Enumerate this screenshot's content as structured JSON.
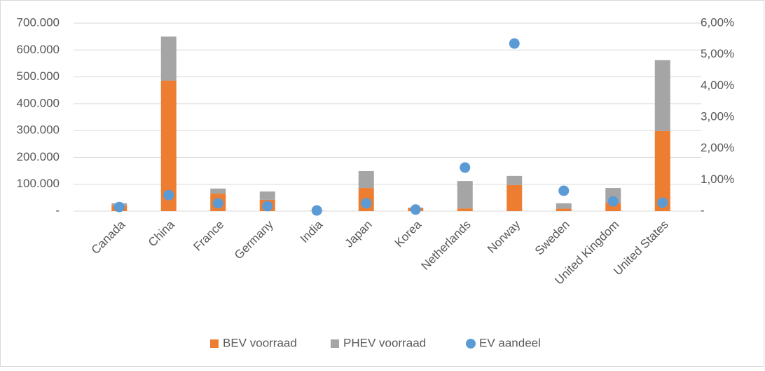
{
  "chart_data": {
    "type": "bar",
    "categories": [
      "Canada",
      "China",
      "France",
      "Germany",
      "India",
      "Japan",
      "Korea",
      "Netherlands",
      "Norway",
      "Sweden",
      "United Kingdom",
      "United States"
    ],
    "series": [
      {
        "name": "BEV voorraad",
        "color": "#ed7d31",
        "stack": true,
        "values": [
          20000,
          486000,
          65000,
          42000,
          1000,
          86000,
          11000,
          10000,
          97000,
          9000,
          31000,
          298000
        ]
      },
      {
        "name": "PHEV voorraad",
        "color": "#a5a5a5",
        "stack": true,
        "values": [
          9000,
          164000,
          19000,
          31000,
          0,
          63000,
          2000,
          102000,
          34000,
          20000,
          55000,
          264000
        ]
      },
      {
        "name": "EV aandeel",
        "color": "#5b9bd5",
        "type": "scatter",
        "axis": "y2",
        "values": [
          0.13,
          0.51,
          0.25,
          0.16,
          0.02,
          0.25,
          0.05,
          1.39,
          5.35,
          0.65,
          0.31,
          0.27
        ]
      }
    ],
    "ylim": [
      0,
      700000
    ],
    "yticks": [
      {
        "value": 0,
        "label": "-"
      },
      {
        "value": 100000,
        "label": "100.000"
      },
      {
        "value": 200000,
        "label": "200.000"
      },
      {
        "value": 300000,
        "label": "300.000"
      },
      {
        "value": 400000,
        "label": "400.000"
      },
      {
        "value": 500000,
        "label": "500.000"
      },
      {
        "value": 600000,
        "label": "600.000"
      },
      {
        "value": 700000,
        "label": "700.000"
      }
    ],
    "y2lim": [
      0,
      6
    ],
    "y2ticks": [
      {
        "value": 0,
        "label": "-"
      },
      {
        "value": 1,
        "label": "1,00%"
      },
      {
        "value": 2,
        "label": "2,00%"
      },
      {
        "value": 3,
        "label": "3,00%"
      },
      {
        "value": 4,
        "label": "4,00%"
      },
      {
        "value": 5,
        "label": "5,00%"
      },
      {
        "value": 6,
        "label": "6,00%"
      }
    ],
    "grid": true,
    "legend": "bottom"
  }
}
